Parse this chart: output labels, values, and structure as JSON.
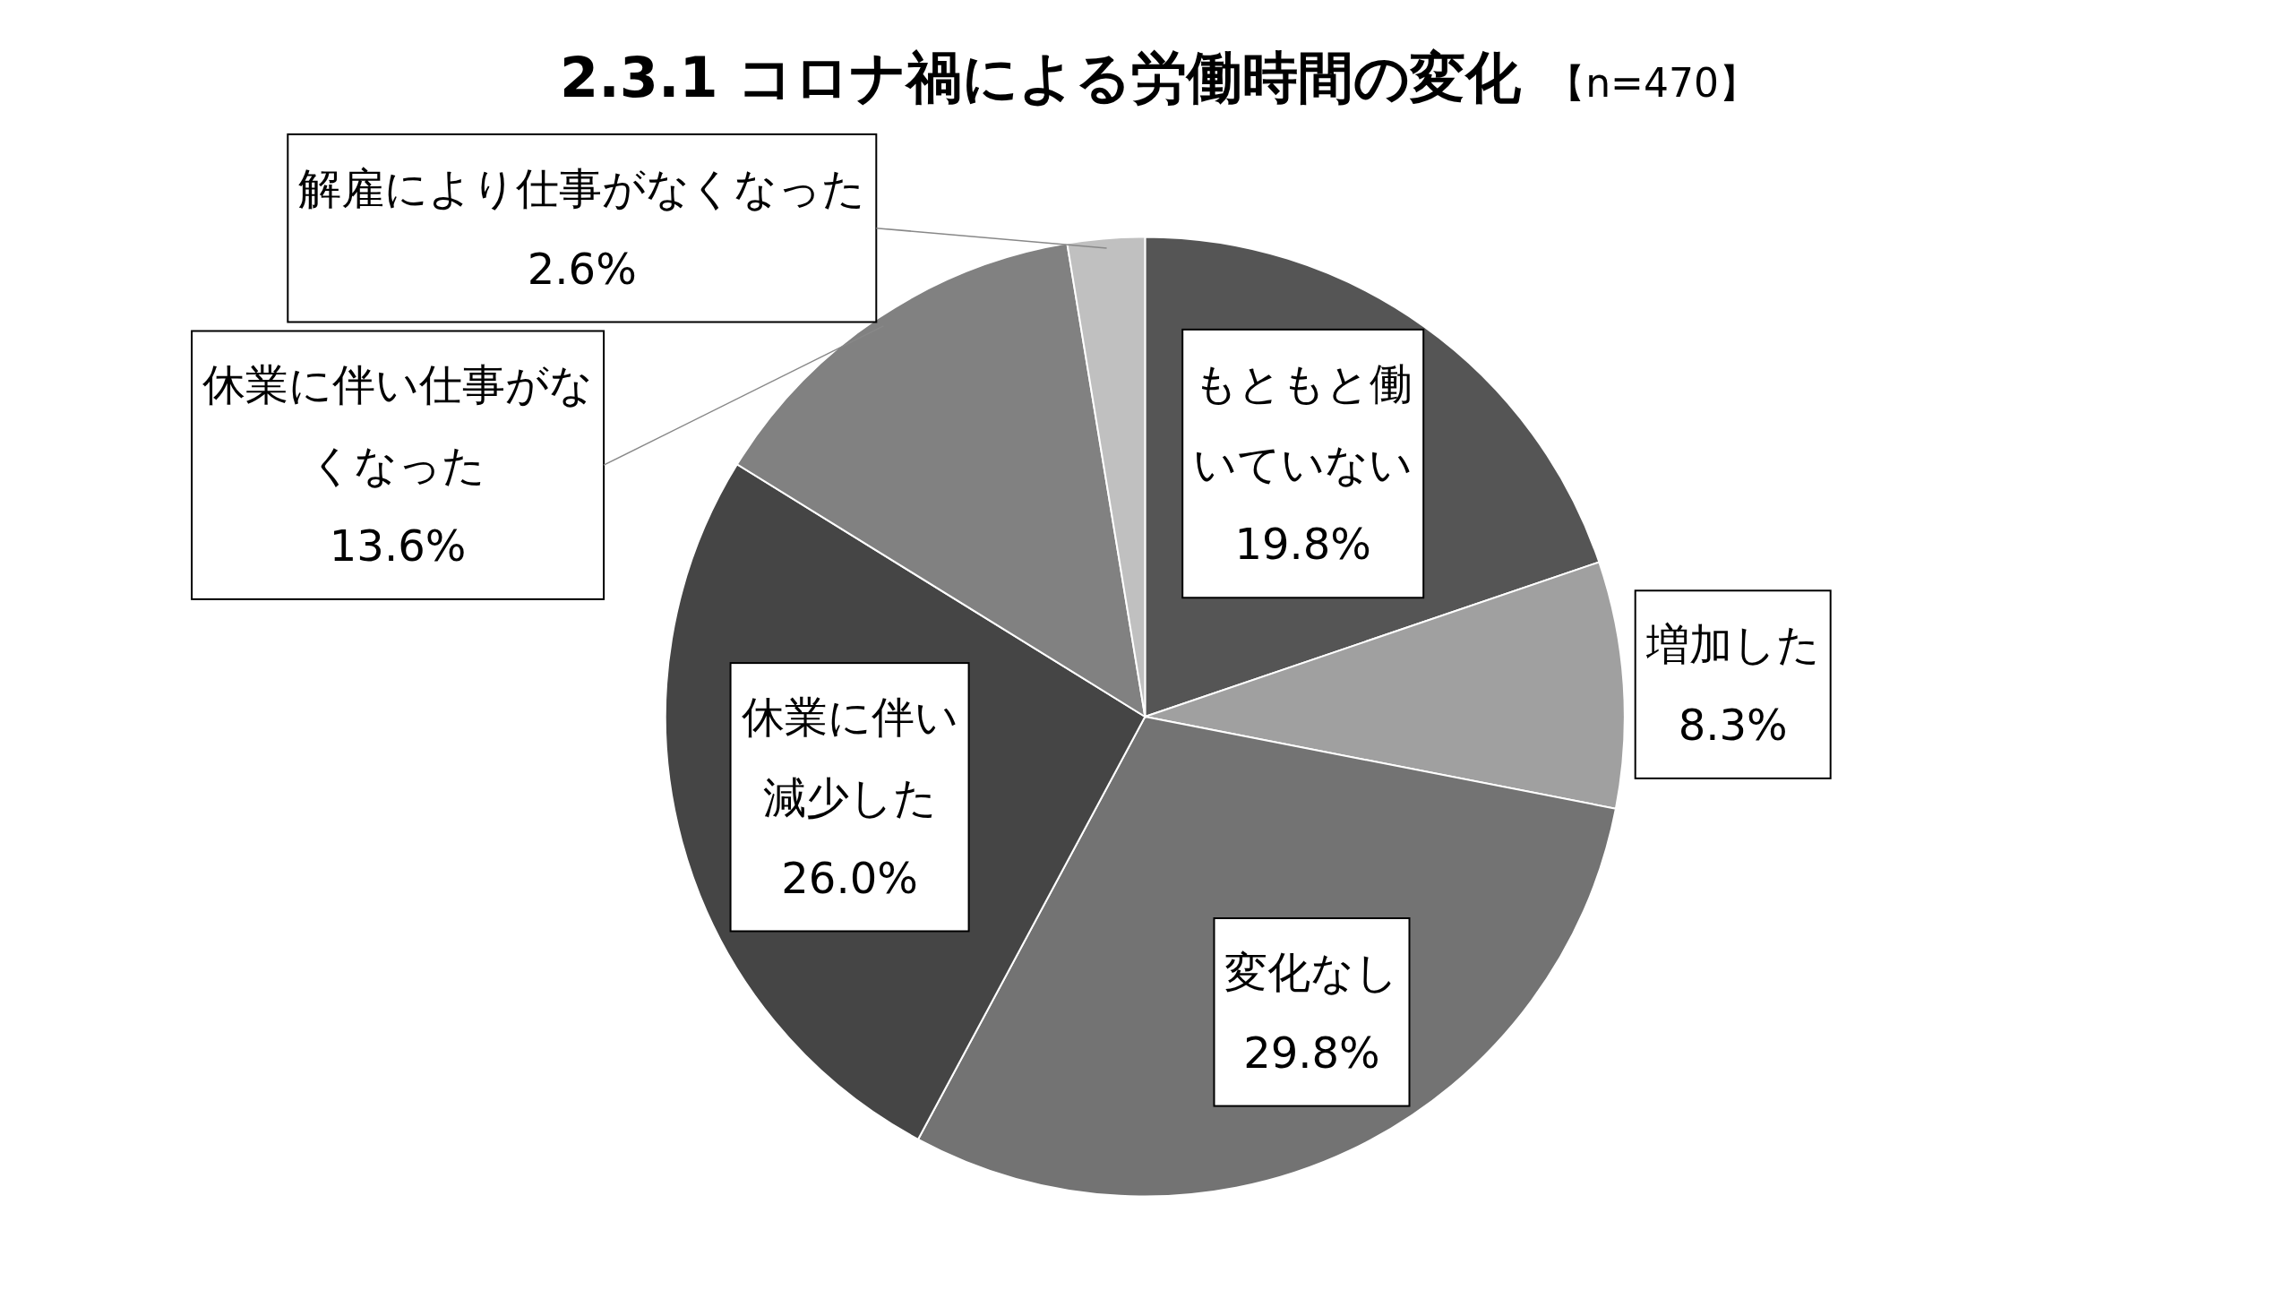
{
  "chart_data": {
    "type": "pie",
    "title": "2.3.1 コロナ禍による労働時間の変化",
    "subtitle": "【n=470】",
    "categories": [
      "もともと働いていない",
      "増加した",
      "変化なし",
      "休業に伴い減少した",
      "休業に伴い仕事がなくなった",
      "解雇により仕事がなくなった"
    ],
    "values": [
      19.8,
      8.3,
      29.8,
      26.0,
      13.6,
      2.6
    ],
    "value_labels": [
      "19.8%",
      "8.3%",
      "29.8%",
      "26.0%",
      "13.6%",
      "2.6%"
    ],
    "colors": [
      "#555555",
      "#a0a0a0",
      "#737373",
      "#454545",
      "#818181",
      "#c0c0c0"
    ]
  }
}
